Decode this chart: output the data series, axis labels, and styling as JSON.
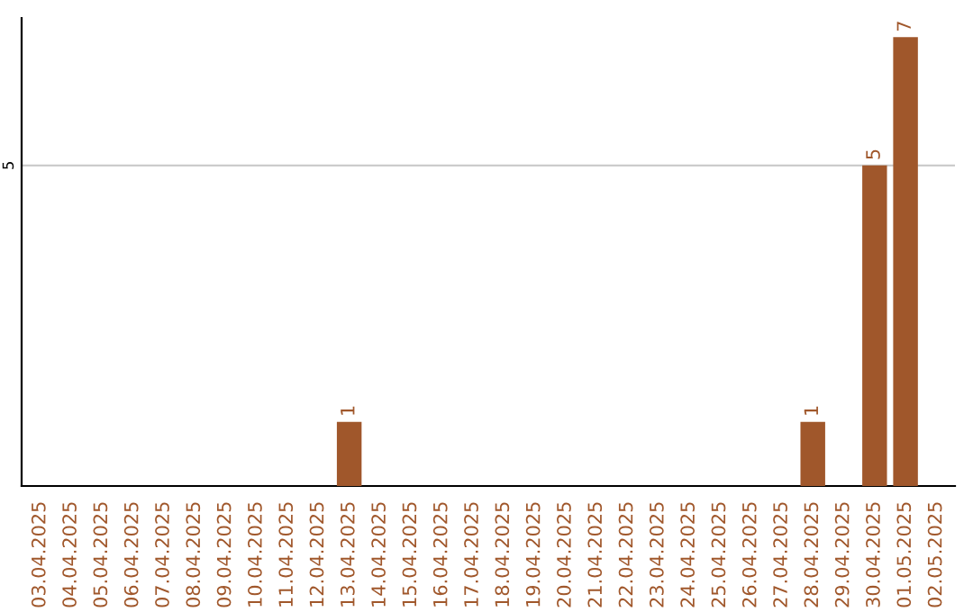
{
  "chart_data": {
    "type": "bar",
    "categories": [
      "03.04.2025",
      "04.04.2025",
      "05.04.2025",
      "06.04.2025",
      "07.04.2025",
      "08.04.2025",
      "09.04.2025",
      "10.04.2025",
      "11.04.2025",
      "12.04.2025",
      "13.04.2025",
      "14.04.2025",
      "15.04.2025",
      "16.04.2025",
      "17.04.2025",
      "18.04.2025",
      "19.04.2025",
      "20.04.2025",
      "21.04.2025",
      "22.04.2025",
      "23.04.2025",
      "24.04.2025",
      "25.04.2025",
      "26.04.2025",
      "27.04.2025",
      "28.04.2025",
      "29.04.2025",
      "30.04.2025",
      "01.05.2025",
      "02.05.2025"
    ],
    "values": [
      null,
      null,
      null,
      null,
      null,
      null,
      null,
      null,
      null,
      null,
      1,
      null,
      null,
      null,
      null,
      null,
      null,
      null,
      null,
      null,
      null,
      null,
      null,
      null,
      null,
      1,
      null,
      5,
      7,
      null
    ],
    "color": "#a0572b",
    "ylim": [
      0,
      7.3
    ],
    "yticks": [
      5
    ],
    "grid": "y",
    "data_labels": true
  }
}
